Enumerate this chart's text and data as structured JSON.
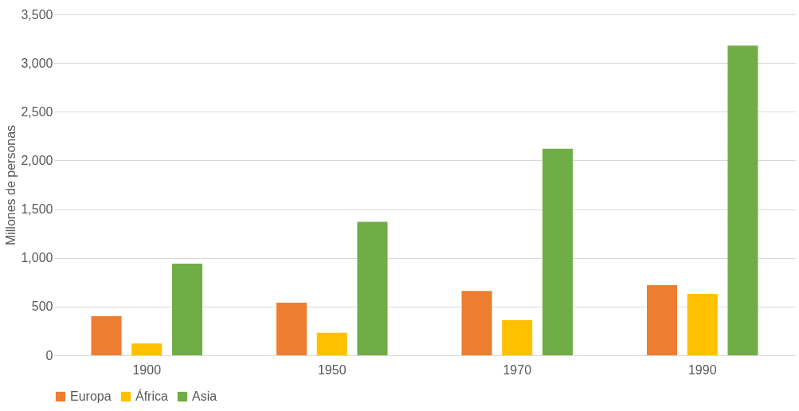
{
  "chart_data": {
    "type": "bar",
    "ylabel": "Millones de personas",
    "categories": [
      "1900",
      "1950",
      "1970",
      "1990"
    ],
    "series": [
      {
        "name": "Europa",
        "color": "#ed7d31",
        "values": [
          400,
          540,
          660,
          720
        ]
      },
      {
        "name": "África",
        "color": "#ffc000",
        "values": [
          120,
          230,
          360,
          630
        ]
      },
      {
        "name": "Asia",
        "color": "#70ad47",
        "values": [
          940,
          1370,
          2120,
          3180
        ]
      }
    ],
    "ylim": [
      0,
      3500
    ],
    "yticks": [
      0,
      {
        "value": 500,
        "label": "500"
      },
      {
        "value": 1000,
        "label": "1,000"
      },
      {
        "value": 1500,
        "label": "1,500"
      },
      {
        "value": 2000,
        "label": "2,000"
      },
      {
        "value": 2500,
        "label": "2,500"
      },
      {
        "value": 3000,
        "label": "3,000"
      },
      {
        "value": 3500,
        "label": "3,500"
      }
    ],
    "grid": "y",
    "legend": "bottom"
  }
}
